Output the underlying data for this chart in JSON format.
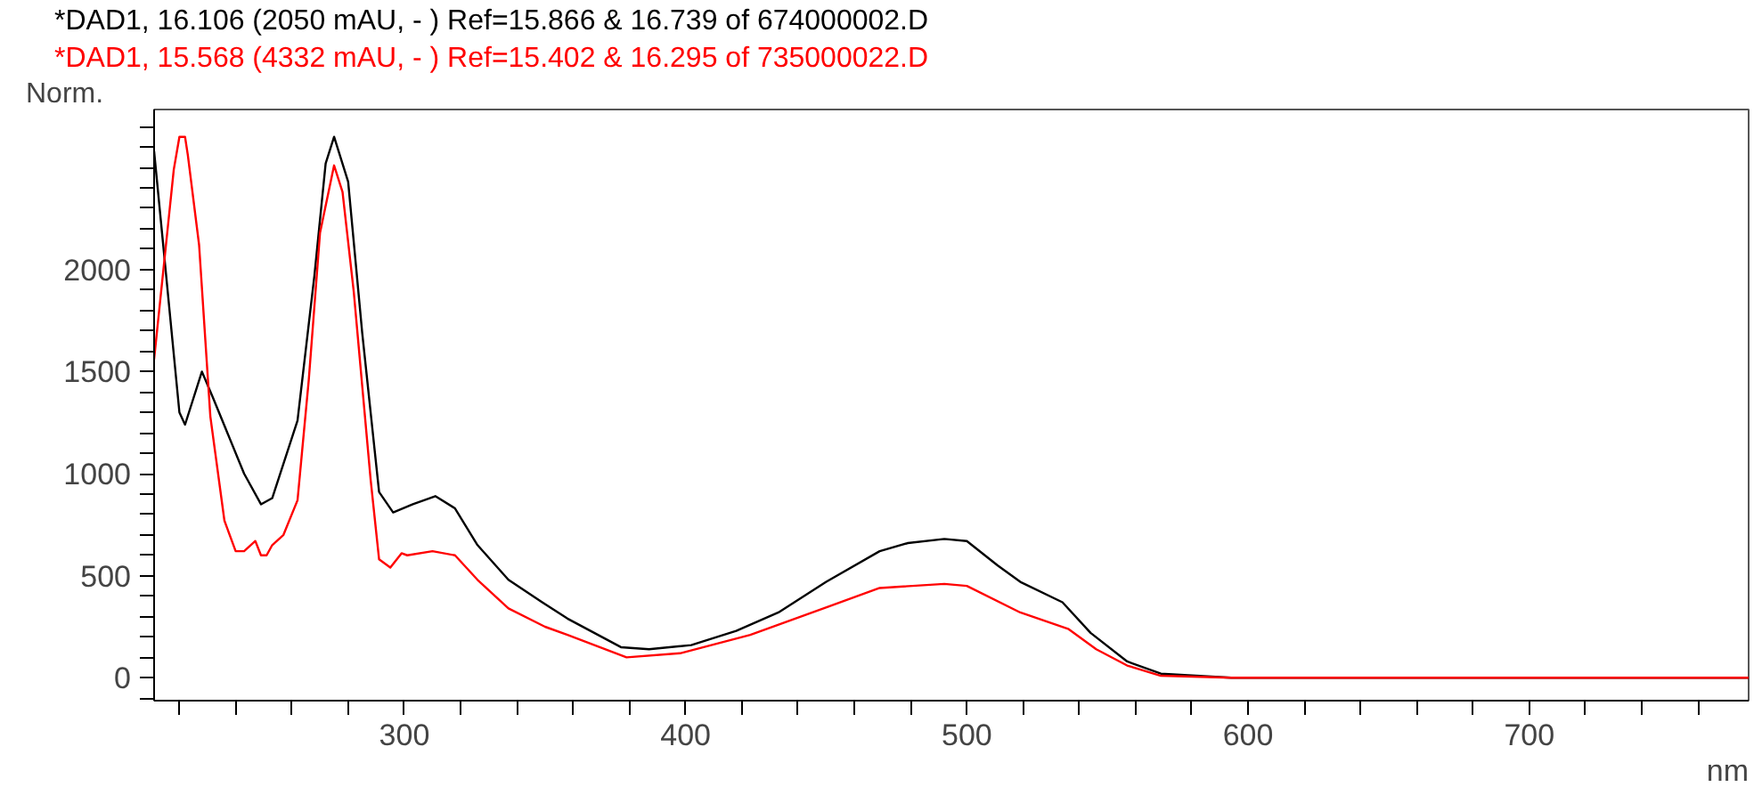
{
  "chart_data": {
    "type": "line",
    "xlabel": "nm",
    "ylabel": "Norm.",
    "xlim": [
      211,
      778
    ],
    "ylim": [
      -112,
      2784
    ],
    "xticks": [
      {
        "value": 220,
        "label": null
      },
      {
        "value": 240,
        "label": null
      },
      {
        "value": 260,
        "label": null
      },
      {
        "value": 280,
        "label": null
      },
      300,
      {
        "value": 320,
        "label": null
      },
      {
        "value": 340,
        "label": null
      },
      {
        "value": 360,
        "label": null
      },
      {
        "value": 380,
        "label": null
      },
      400,
      {
        "value": 420,
        "label": null
      },
      {
        "value": 440,
        "label": null
      },
      {
        "value": 460,
        "label": null
      },
      {
        "value": 480,
        "label": null
      },
      500,
      {
        "value": 520,
        "label": null
      },
      {
        "value": 540,
        "label": null
      },
      {
        "value": 560,
        "label": null
      },
      {
        "value": 580,
        "label": null
      },
      600,
      {
        "value": 620,
        "label": null
      },
      {
        "value": 640,
        "label": null
      },
      {
        "value": 660,
        "label": null
      },
      {
        "value": 680,
        "label": null
      },
      700,
      {
        "value": 720,
        "label": null
      },
      {
        "value": 740,
        "label": null
      },
      {
        "value": 760,
        "label": null
      }
    ],
    "yticks": [
      {
        "value": -100,
        "label": null
      },
      0,
      {
        "value": 100,
        "label": null
      },
      {
        "value": 200,
        "label": null
      },
      {
        "value": 300,
        "label": null
      },
      {
        "value": 400,
        "label": null
      },
      500,
      {
        "value": 600,
        "label": null
      },
      {
        "value": 700,
        "label": null
      },
      {
        "value": 800,
        "label": null
      },
      {
        "value": 900,
        "label": null
      },
      1000,
      {
        "value": 1100,
        "label": null
      },
      {
        "value": 1200,
        "label": null
      },
      {
        "value": 1300,
        "label": null
      },
      {
        "value": 1400,
        "label": null
      },
      1500,
      {
        "value": 1600,
        "label": null
      },
      {
        "value": 1700,
        "label": null
      },
      {
        "value": 1800,
        "label": null
      },
      {
        "value": 1900,
        "label": null
      },
      2000,
      {
        "value": 2100,
        "label": null
      },
      {
        "value": 2200,
        "label": null
      },
      {
        "value": 2300,
        "label": null
      },
      {
        "value": 2400,
        "label": null
      },
      {
        "value": 2500,
        "label": null
      },
      {
        "value": 2600,
        "label": null
      },
      {
        "value": 2700,
        "label": null
      }
    ],
    "grid": false,
    "legend": "top left",
    "marker": "none",
    "line_style": "solid",
    "series": [
      {
        "name": "*DAD1, 16.106 (2050 mAU, - ) Ref=15.866 & 16.739 of 674000002.D",
        "color": "#000000",
        "x": [
          211,
          220,
          222,
          228,
          232,
          243,
          249,
          253,
          262,
          268,
          272,
          275,
          280,
          285,
          291,
          296,
          303,
          311,
          318,
          326,
          337,
          349,
          358,
          377,
          387,
          402,
          418,
          433,
          450,
          469,
          479,
          492,
          500,
          511,
          519,
          534,
          544,
          557,
          569,
          594,
          650,
          778
        ],
        "values": [
          2580,
          1300,
          1240,
          1500,
          1370,
          1000,
          850,
          880,
          1260,
          1970,
          2520,
          2650,
          2430,
          1690,
          910,
          810,
          850,
          890,
          830,
          650,
          480,
          370,
          290,
          150,
          140,
          160,
          230,
          320,
          470,
          620,
          660,
          680,
          670,
          550,
          470,
          370,
          220,
          80,
          20,
          0,
          0,
          0
        ]
      },
      {
        "name": "*DAD1, 15.568 (4332 mAU, - ) Ref=15.402 & 16.295 of 735000022.D",
        "color": "#ff0000",
        "x": [
          211,
          218,
          220,
          222,
          223,
          227,
          231,
          236,
          240,
          243,
          247,
          249,
          251,
          253,
          257,
          262,
          266,
          270,
          275,
          278,
          282,
          288,
          291,
          295,
          299,
          301,
          310,
          318,
          326,
          337,
          350,
          358,
          379,
          398,
          423,
          451,
          469,
          492,
          500,
          519,
          536,
          546,
          557,
          569,
          594,
          650,
          778
        ],
        "values": [
          1560,
          2490,
          2650,
          2650,
          2560,
          2120,
          1280,
          770,
          620,
          620,
          670,
          600,
          600,
          650,
          700,
          870,
          1460,
          2180,
          2510,
          2380,
          1890,
          970,
          580,
          540,
          610,
          600,
          620,
          600,
          480,
          340,
          250,
          210,
          100,
          120,
          210,
          350,
          440,
          460,
          450,
          320,
          240,
          140,
          60,
          10,
          0,
          0,
          0
        ]
      }
    ]
  }
}
